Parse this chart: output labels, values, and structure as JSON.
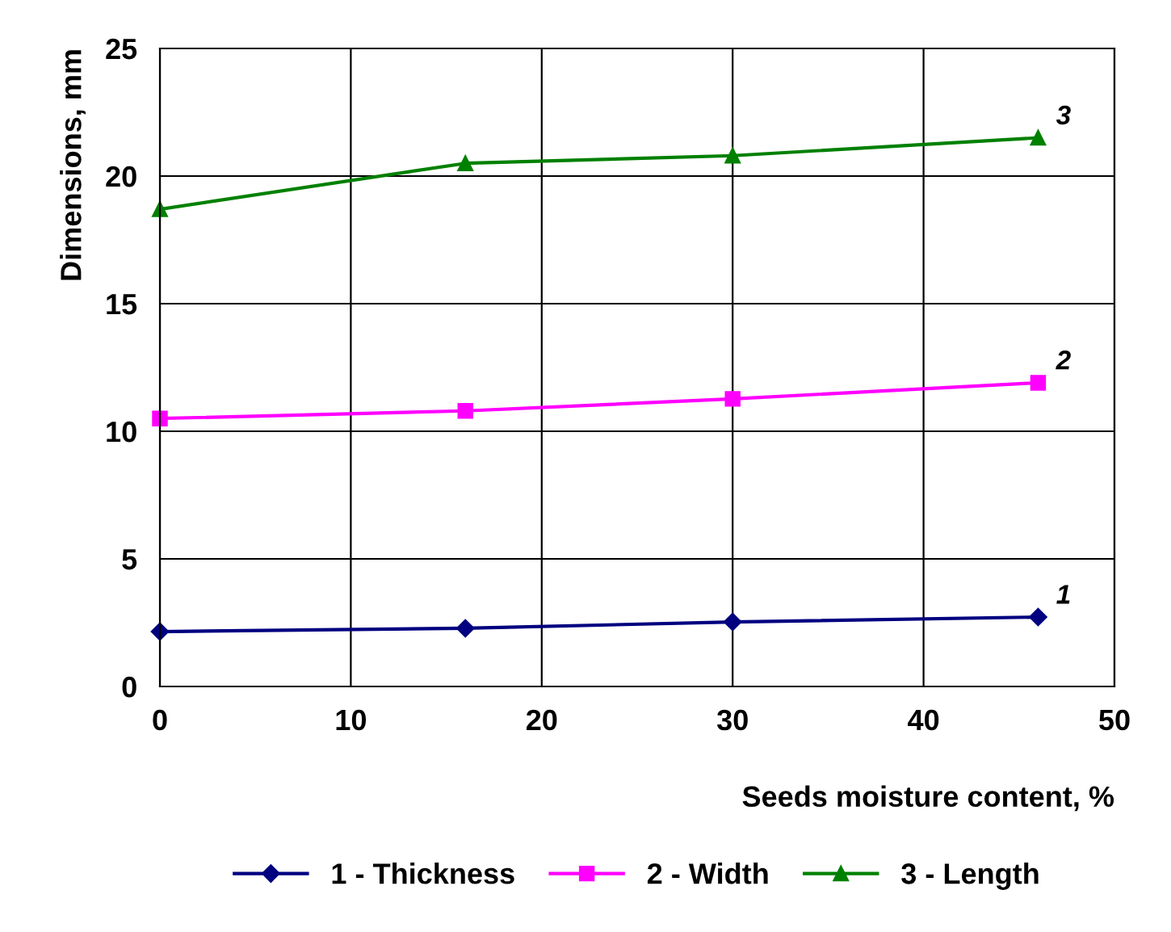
{
  "chart_data": {
    "type": "line",
    "xlabel": "Seeds moisture content, %",
    "ylabel": "Dimensions, mm",
    "x": [
      0,
      16,
      30,
      46
    ],
    "series": [
      {
        "name": "1 - Thickness",
        "color": "#000080",
        "marker": "diamond",
        "values": [
          2.15,
          2.28,
          2.53,
          2.72
        ]
      },
      {
        "name": "2 - Width",
        "color": "#ff00ff",
        "marker": "square",
        "values": [
          10.5,
          10.8,
          11.27,
          11.9
        ]
      },
      {
        "name": "3 - Length",
        "color": "#008000",
        "marker": "triangle",
        "values": [
          18.7,
          20.5,
          20.8,
          21.5
        ]
      }
    ],
    "annotations": [
      "1",
      "2",
      "3"
    ],
    "xlim": [
      0,
      50
    ],
    "ylim": [
      0,
      25
    ],
    "xticks": [
      0,
      10,
      20,
      30,
      40,
      50
    ],
    "yticks": [
      0,
      5,
      10,
      15,
      20,
      25
    ],
    "grid": true,
    "legend": "bottom",
    "line_style": "solid"
  }
}
